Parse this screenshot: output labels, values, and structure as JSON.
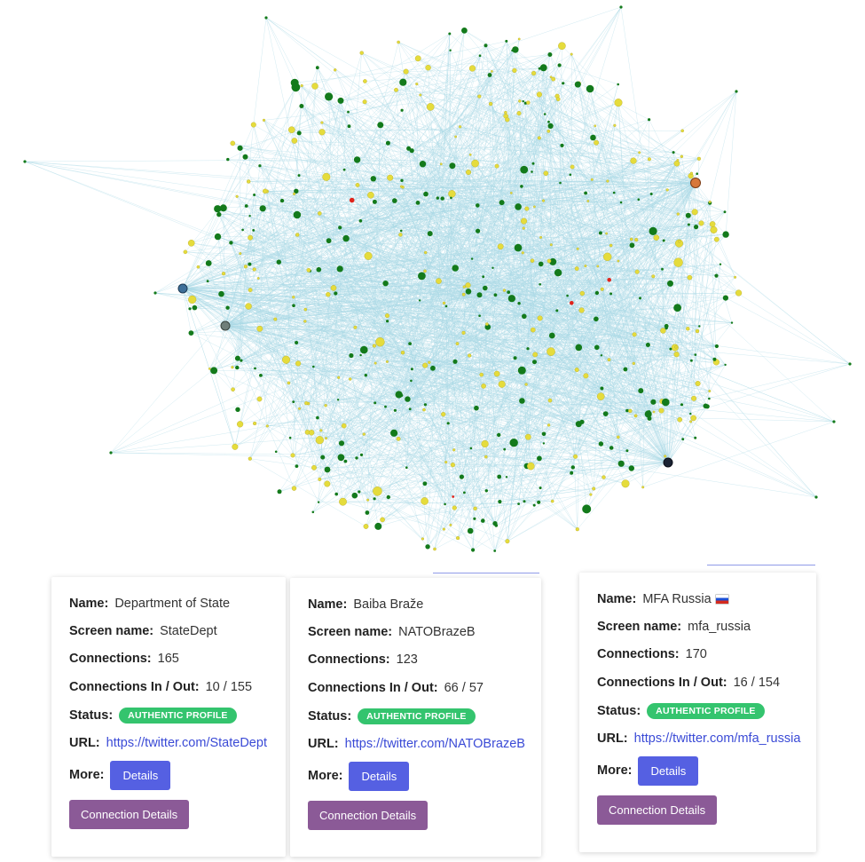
{
  "graph": {
    "edge_color": "#a9d9e6",
    "node_colors": {
      "authentic": "#137a1b",
      "suspicious": "#e5dc3c",
      "flagged": "#e0241b"
    }
  },
  "labels": {
    "name": "Name:",
    "screen_name": "Screen name:",
    "connections": "Connections:",
    "in_out": "Connections In / Out:",
    "status": "Status:",
    "url": "URL:",
    "more": "More:",
    "details": "Details",
    "connection_details": "Connection Details"
  },
  "cards": [
    {
      "name": "Department of State",
      "screen_name": "StateDept",
      "connections": "165",
      "in_out": "10 / 155",
      "status": "AUTHENTIC PROFILE",
      "url": "https://twitter.com/StateDept"
    },
    {
      "name": "Baiba Braže",
      "screen_name": "NATOBrazeB",
      "connections": "123",
      "in_out": "66 / 57",
      "status": "AUTHENTIC PROFILE",
      "url": "https://twitter.com/NATOBrazeB"
    },
    {
      "name": "MFA Russia",
      "screen_name": "mfa_russia",
      "connections": "170",
      "in_out": "16 / 154",
      "status": "AUTHENTIC PROFILE",
      "url": "https://twitter.com/mfa_russia",
      "flag": "russia-flag-icon"
    }
  ]
}
